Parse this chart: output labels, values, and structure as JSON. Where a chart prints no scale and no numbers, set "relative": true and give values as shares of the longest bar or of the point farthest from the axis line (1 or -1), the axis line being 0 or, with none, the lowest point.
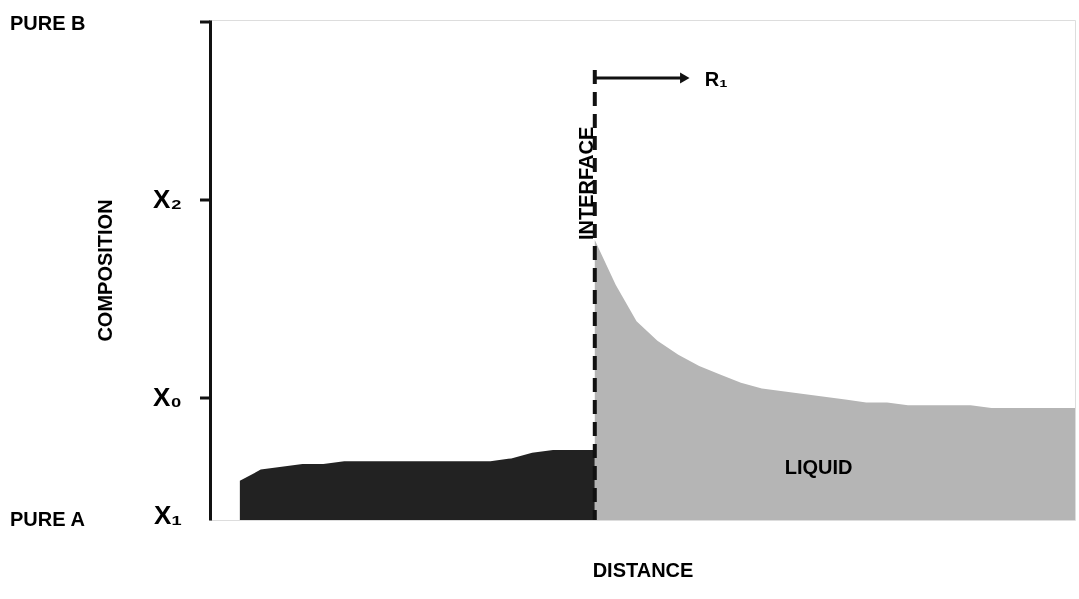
{
  "chart_data": {
    "type": "area",
    "xlabel": "DISTANCE",
    "ylabel": "COMPOSITION",
    "relative": true,
    "grid": false,
    "categories": [
      null,
      null,
      null,
      null,
      null,
      null,
      null,
      null,
      null,
      null,
      null,
      null,
      null,
      null,
      null,
      null,
      null,
      null,
      null,
      null,
      null,
      null,
      null,
      null,
      null,
      null,
      null,
      null,
      null,
      null,
      null,
      null,
      null,
      null,
      null,
      null,
      null,
      null,
      null,
      null,
      null
    ],
    "series": [
      {
        "color": "#222222",
        "values": [
          0.14,
          0.18,
          0.19,
          0.2,
          0.2,
          0.21,
          0.21,
          0.21,
          0.21,
          0.21,
          0.21,
          0.21,
          0.21,
          0.22,
          0.24,
          0.25,
          0.25,
          0.25,
          null,
          null,
          null,
          null,
          null,
          null,
          null,
          null,
          null,
          null,
          null,
          null,
          null,
          null,
          null,
          null,
          null,
          null,
          null,
          null,
          null,
          null,
          null
        ]
      },
      {
        "color": "#b5b5b5",
        "values": [
          null,
          null,
          null,
          null,
          null,
          null,
          null,
          null,
          null,
          null,
          null,
          null,
          null,
          null,
          null,
          null,
          null,
          1,
          0.84,
          0.71,
          0.64,
          0.59,
          0.55,
          0.52,
          0.49,
          0.47,
          0.46,
          0.45,
          0.44,
          0.43,
          0.42,
          0.42,
          0.41,
          0.41,
          0.41,
          0.41,
          0.4,
          0.4,
          0.4,
          0.4,
          0.4
        ]
      }
    ],
    "annotations": [
      "PURE B",
      "X₂",
      "X₀",
      "PURE A",
      "X₁",
      "INTERFACE",
      "R₁",
      "LIQUID"
    ]
  }
}
